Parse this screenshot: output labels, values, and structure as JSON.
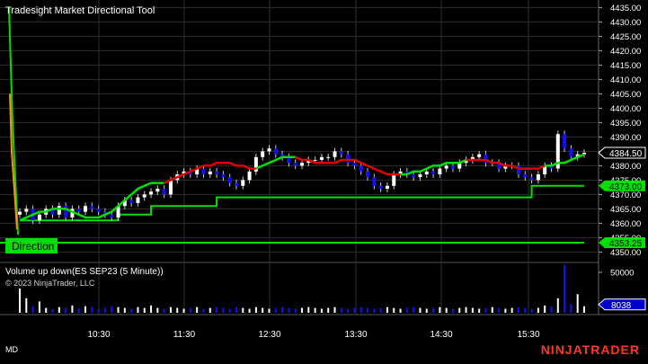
{
  "price_panel": {
    "title": "Tradesight Market Directional Tool",
    "direction_label": "Direction",
    "y_ticks": [
      "4435.00",
      "4430.00",
      "4425.00",
      "4420.00",
      "4415.00",
      "4410.00",
      "4405.00",
      "4400.00",
      "4395.00",
      "4390.00",
      "4385.00",
      "4380.00",
      "4375.00",
      "4370.00",
      "4365.00",
      "4360.00",
      "4355.00",
      "4350.00"
    ],
    "price_badges": [
      {
        "text": "4384.50",
        "value": 4384.5,
        "color": "#ffffff",
        "fill": "#000000"
      },
      {
        "text": "4373.00",
        "value": 4373.0,
        "color": "#000000",
        "fill": "#00e000"
      },
      {
        "text": "4353.25",
        "value": 4353.25,
        "color": "#000000",
        "fill": "#00e000"
      }
    ]
  },
  "volume_panel": {
    "title": "Volume up down(ES SEP23 (5 Minute))",
    "y_ticks": [
      "50000"
    ],
    "badge": {
      "text": "8038",
      "color": "#ffffff",
      "fill": "#0000cc"
    },
    "copyright": "© 2023 NinjaTrader, LLC"
  },
  "x_ticks": [
    "10:30",
    "11:30",
    "12:30",
    "13:30",
    "14:30",
    "15:30"
  ],
  "footer": {
    "left_label": "MD",
    "brand": "NINJATRADER"
  },
  "colors": {
    "background": "#000000",
    "grid": "#2e2e2e",
    "up": "#ffffff",
    "down": "#1010ff",
    "line_green": "#00e000",
    "line_red": "#e00000"
  },
  "chart_data": {
    "type": "candlestick",
    "y_range": [
      4347,
      4437
    ],
    "time_axis": [
      "10:30",
      "11:30",
      "12:30",
      "13:30",
      "14:30",
      "15:30"
    ],
    "closes": [
      4364,
      4365,
      4361,
      4363,
      4365,
      4363,
      4366,
      4362,
      4365,
      4364,
      4366,
      4365,
      4364,
      4363,
      4362,
      4366,
      4368,
      4367,
      4369,
      4370,
      4371,
      4372,
      4370,
      4375,
      4377,
      4378,
      4377,
      4379,
      4377,
      4378,
      4377,
      4376,
      4374,
      4373,
      4375,
      4378,
      4383,
      4385,
      4386,
      4384,
      4383,
      4381,
      4380,
      4381,
      4382,
      4382,
      4383,
      4383,
      4385,
      4384,
      4381,
      4380,
      4378,
      4376,
      4373,
      4372,
      4373,
      4377,
      4378,
      4377,
      4376,
      4377,
      4378,
      4377,
      4379,
      4380,
      4379,
      4381,
      4382,
      4383,
      4384,
      4381,
      4381,
      4379,
      4380,
      4380,
      4377,
      4376,
      4375,
      4377,
      4380,
      4379,
      4391,
      4386,
      4383,
      4384,
      4384.5
    ],
    "directional_line": [
      4361,
      4362,
      4363,
      4364,
      4364,
      4365,
      4365,
      4365,
      4364,
      4363,
      4362,
      4362,
      4362,
      4363,
      4364,
      4366,
      4368,
      4370,
      4372,
      4373,
      4374,
      4374,
      4374,
      4375,
      4376,
      4377,
      4378,
      4379,
      4380,
      4380,
      4381,
      4381,
      4381,
      4380,
      4380,
      4379,
      4379,
      4380,
      4381,
      4382,
      4383,
      4383,
      4383,
      4382,
      4382,
      4381,
      4381,
      4381,
      4381,
      4382,
      4382,
      4382,
      4381,
      4380,
      4379,
      4378,
      4377,
      4377,
      4377,
      4377,
      4378,
      4378,
      4379,
      4380,
      4380,
      4381,
      4381,
      4381,
      4382,
      4382,
      4382,
      4382,
      4381,
      4381,
      4380,
      4380,
      4379,
      4379,
      4379,
      4379,
      4380,
      4380,
      4381,
      4381,
      4382,
      4383,
      4384
    ],
    "line_color_segments": [
      [
        "g",
        0,
        22
      ],
      [
        "r",
        22,
        36
      ],
      [
        "g",
        36,
        42
      ],
      [
        "r",
        42,
        58
      ],
      [
        "g",
        58,
        68
      ],
      [
        "r",
        68,
        80
      ],
      [
        "g",
        80,
        86
      ]
    ],
    "support_step": [
      [
        0,
        4361
      ],
      [
        15,
        4363
      ],
      [
        20,
        4366
      ],
      [
        30,
        4369
      ],
      [
        60,
        4369
      ],
      [
        78,
        4373
      ],
      [
        86,
        4373
      ]
    ],
    "base_line": 4353.25,
    "volume_max": 60000,
    "volume": [
      30000,
      18000,
      8000,
      14000,
      6000,
      5000,
      7000,
      6000,
      9000,
      6000,
      8000,
      7000,
      5000,
      6000,
      8000,
      7000,
      6000,
      5000,
      7000,
      6000,
      9000,
      6000,
      5000,
      7000,
      6000,
      5000,
      6000,
      7000,
      5000,
      6000,
      7000,
      6000,
      5000,
      7000,
      6000,
      5000,
      7000,
      6000,
      5000,
      6000,
      7000,
      6000,
      5000,
      6000,
      7000,
      6000,
      5000,
      6000,
      7000,
      6000,
      5000,
      6000,
      7000,
      6000,
      5000,
      6000,
      7000,
      6000,
      5000,
      6000,
      7000,
      6000,
      5000,
      6000,
      7000,
      6000,
      5000,
      6000,
      7000,
      6000,
      5000,
      6000,
      7000,
      6000,
      5000,
      6000,
      7000,
      6000,
      5000,
      6000,
      9000,
      8000,
      18000,
      59000,
      11000,
      23000,
      8038
    ]
  }
}
